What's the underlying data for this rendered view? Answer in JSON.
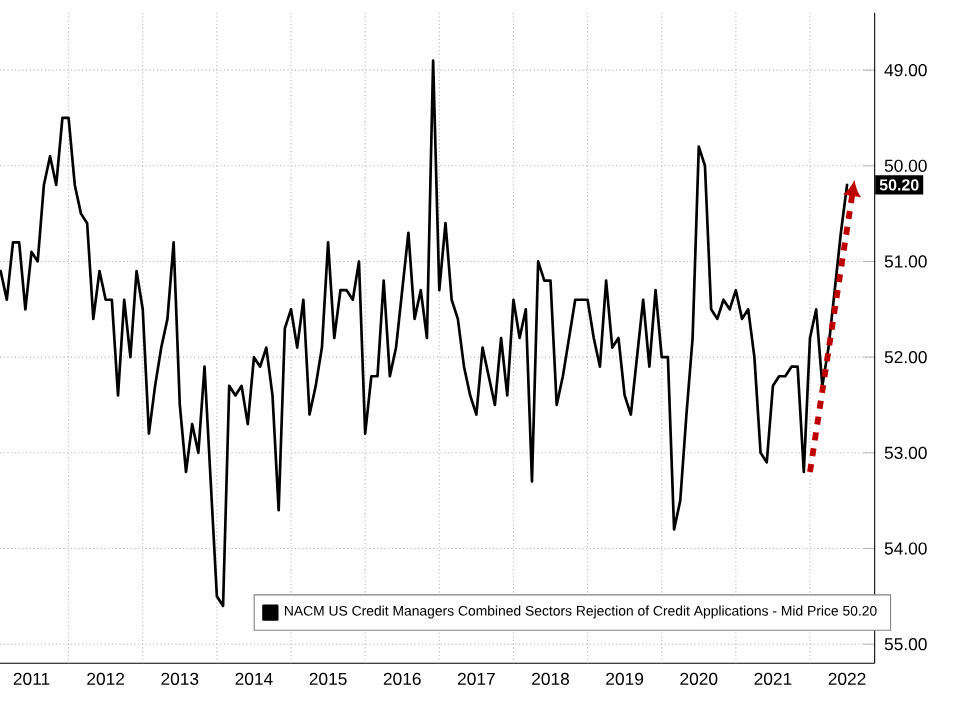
{
  "chart_data": {
    "type": "line",
    "legend": "bottom",
    "grid": true,
    "line_style": "solid",
    "x": [
      "2011-02",
      "2011-03",
      "2011-04",
      "2011-05",
      "2011-06",
      "2011-07",
      "2011-08",
      "2011-09",
      "2011-10",
      "2011-11",
      "2011-12",
      "2012-01",
      "2012-02",
      "2012-03",
      "2012-04",
      "2012-05",
      "2012-06",
      "2012-07",
      "2012-08",
      "2012-09",
      "2012-10",
      "2012-11",
      "2012-12",
      "2013-01",
      "2013-02",
      "2013-03",
      "2013-04",
      "2013-05",
      "2013-06",
      "2013-07",
      "2013-08",
      "2013-09",
      "2013-10",
      "2013-11",
      "2013-12",
      "2014-01",
      "2014-02",
      "2014-03",
      "2014-04",
      "2014-05",
      "2014-06",
      "2014-07",
      "2014-08",
      "2014-09",
      "2014-10",
      "2014-11",
      "2014-12",
      "2015-01",
      "2015-02",
      "2015-03",
      "2015-04",
      "2015-05",
      "2015-06",
      "2015-07",
      "2015-08",
      "2015-09",
      "2015-10",
      "2015-11",
      "2015-12",
      "2016-01",
      "2016-02",
      "2016-03",
      "2016-04",
      "2016-05",
      "2016-06",
      "2016-07",
      "2016-08",
      "2016-09",
      "2016-10",
      "2016-11",
      "2016-12",
      "2017-01",
      "2017-02",
      "2017-03",
      "2017-04",
      "2017-05",
      "2017-06",
      "2017-07",
      "2017-08",
      "2017-09",
      "2017-10",
      "2017-11",
      "2017-12",
      "2018-01",
      "2018-02",
      "2018-03",
      "2018-04",
      "2018-05",
      "2018-06",
      "2018-07",
      "2018-08",
      "2018-09",
      "2018-10",
      "2018-11",
      "2018-12",
      "2019-01",
      "2019-02",
      "2019-03",
      "2019-04",
      "2019-05",
      "2019-06",
      "2019-07",
      "2019-08",
      "2019-09",
      "2019-10",
      "2019-11",
      "2019-12",
      "2020-01",
      "2020-02",
      "2020-03",
      "2020-04",
      "2020-05",
      "2020-06",
      "2020-07",
      "2020-08",
      "2020-09",
      "2020-10",
      "2020-11",
      "2020-12",
      "2021-01",
      "2021-02",
      "2021-03",
      "2021-04",
      "2021-05",
      "2021-06",
      "2021-07",
      "2021-08",
      "2021-09",
      "2021-10",
      "2021-11",
      "2021-12",
      "2022-01",
      "2022-02",
      "2022-03",
      "2022-04",
      "2022-05",
      "2022-06",
      "2022-07"
    ],
    "series": [
      {
        "name": "NACM US Credit Managers Combined Sectors Rejection of Credit Applications - Mid Price 50.20",
        "color": "#000000",
        "values": [
          51.1,
          51.4,
          50.8,
          50.8,
          51.5,
          50.9,
          51.0,
          50.2,
          49.9,
          50.2,
          49.5,
          49.5,
          50.2,
          50.5,
          50.6,
          51.6,
          51.1,
          51.4,
          51.4,
          52.4,
          51.4,
          52.0,
          51.1,
          51.5,
          52.8,
          52.3,
          51.9,
          51.6,
          50.8,
          52.5,
          53.2,
          52.7,
          53.0,
          52.1,
          53.3,
          54.5,
          54.6,
          52.3,
          52.4,
          52.3,
          52.7,
          52.0,
          52.1,
          51.9,
          52.4,
          53.6,
          51.7,
          51.5,
          51.9,
          51.4,
          52.6,
          52.3,
          51.9,
          50.8,
          51.8,
          51.3,
          51.3,
          51.4,
          51.0,
          52.8,
          52.2,
          52.2,
          51.2,
          52.2,
          51.9,
          51.3,
          50.7,
          51.6,
          51.3,
          51.8,
          48.9,
          51.3,
          50.6,
          51.4,
          51.6,
          52.1,
          52.4,
          52.6,
          51.9,
          52.2,
          52.5,
          51.8,
          52.4,
          51.4,
          51.8,
          51.5,
          53.3,
          51.0,
          51.2,
          51.2,
          52.5,
          52.2,
          51.8,
          51.4,
          51.4,
          51.4,
          51.8,
          52.1,
          51.2,
          51.9,
          51.8,
          52.4,
          52.6,
          52.0,
          51.4,
          52.1,
          51.3,
          52.0,
          52.0,
          53.8,
          53.5,
          52.6,
          51.8,
          49.8,
          50.0,
          51.5,
          51.6,
          51.4,
          51.5,
          51.3,
          51.6,
          51.5,
          52.0,
          53.0,
          53.1,
          52.3,
          52.2,
          52.2,
          52.1,
          52.1,
          53.2,
          51.8,
          51.5,
          52.3,
          51.9,
          51.3,
          50.7,
          50.2
        ]
      }
    ],
    "xlim": [
      "2011-01-28",
      "2022-11-15"
    ],
    "xticks": [
      {
        "value": "2011-07-01",
        "label": "2011"
      },
      {
        "value": "2012-01-01",
        "label": null
      },
      {
        "value": "2012-07-01",
        "label": "2012"
      },
      {
        "value": "2013-01-01",
        "label": null
      },
      {
        "value": "2013-07-01",
        "label": "2013"
      },
      {
        "value": "2014-01-01",
        "label": null
      },
      {
        "value": "2014-07-01",
        "label": "2014"
      },
      {
        "value": "2015-01-01",
        "label": null
      },
      {
        "value": "2015-07-01",
        "label": "2015"
      },
      {
        "value": "2016-01-01",
        "label": null
      },
      {
        "value": "2016-07-01",
        "label": "2016"
      },
      {
        "value": "2017-01-01",
        "label": null
      },
      {
        "value": "2017-07-01",
        "label": "2017"
      },
      {
        "value": "2018-01-01",
        "label": null
      },
      {
        "value": "2018-07-01",
        "label": "2018"
      },
      {
        "value": "2019-01-01",
        "label": null
      },
      {
        "value": "2019-07-01",
        "label": "2019"
      },
      {
        "value": "2020-01-01",
        "label": null
      },
      {
        "value": "2020-07-01",
        "label": "2020"
      },
      {
        "value": "2021-01-01",
        "label": null
      },
      {
        "value": "2021-07-01",
        "label": "2021"
      },
      {
        "value": "2022-01-01",
        "label": null
      },
      {
        "value": "2022-07-01",
        "label": "2022"
      }
    ],
    "ylim": [
      55.2,
      48.4
    ],
    "yticks": [
      {
        "value": 49,
        "label": "49.00"
      },
      {
        "value": 50,
        "label": "50.00"
      },
      {
        "value": 51,
        "label": "51.00"
      },
      {
        "value": 52,
        "label": "52.00"
      },
      {
        "value": 53,
        "label": "53.00"
      },
      {
        "value": 54,
        "label": "54.00"
      },
      {
        "value": 55,
        "label": "55.00"
      }
    ],
    "annotations": [
      {
        "text": "50.20",
        "x": "2022-07",
        "y": 50.2
      }
    ]
  }
}
